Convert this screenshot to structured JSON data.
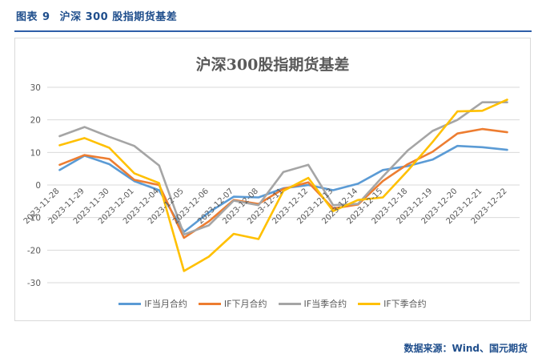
{
  "figure": {
    "label": "图表",
    "number": "9",
    "title": "沪深 300 股指期货基差"
  },
  "source": "数据来源：Wind、国元期货",
  "chart_data": {
    "type": "line",
    "title": "沪深300股指期货基差",
    "xlabel": "",
    "ylabel": "",
    "ylim": [
      -30,
      30
    ],
    "yticks": [
      -30,
      -20,
      -10,
      0,
      10,
      20,
      30
    ],
    "grid": true,
    "legend_position": "bottom",
    "x": [
      "2023-11-28",
      "2023-11-29",
      "2023-11-30",
      "2023-12-01",
      "2023-12-04",
      "2023-12-05",
      "2023-12-06",
      "2023-12-07",
      "2023-12-08",
      "2023-12-11",
      "2023-12-12",
      "2023-12-13",
      "2023-12-14",
      "2023-12-15",
      "2023-12-18",
      "2023-12-19",
      "2023-12-20",
      "2023-12-21",
      "2023-12-22"
    ],
    "series": [
      {
        "name": "IF当月合约",
        "color": "#5b9bd5",
        "values": [
          4.6,
          9.0,
          6.4,
          1.2,
          -1.6,
          -14.4,
          -8.4,
          -3.6,
          -3.8,
          -1.0,
          0.0,
          -1.6,
          0.4,
          4.6,
          5.8,
          7.8,
          12.0,
          11.6,
          10.8
        ]
      },
      {
        "name": "IF下月合约",
        "color": "#ed7d31",
        "values": [
          6.2,
          9.2,
          8.0,
          1.6,
          0.0,
          -16.2,
          -11.2,
          -4.6,
          -5.8,
          -1.2,
          0.8,
          -7.2,
          -6.0,
          1.2,
          6.4,
          10.2,
          15.8,
          17.2,
          16.2
        ]
      },
      {
        "name": "IF当季合约",
        "color": "#a5a5a5",
        "values": [
          15.0,
          17.8,
          14.8,
          12.0,
          6.0,
          -15.2,
          -12.4,
          -4.8,
          -6.2,
          4.0,
          6.2,
          -6.2,
          -5.8,
          2.6,
          10.6,
          16.6,
          20.0,
          25.4,
          25.4
        ]
      },
      {
        "name": "IF下季合约",
        "color": "#ffc000",
        "values": [
          12.2,
          14.4,
          11.4,
          3.6,
          0.6,
          -26.4,
          -22.0,
          -15.0,
          -16.6,
          -1.8,
          2.2,
          -8.0,
          -4.6,
          -3.8,
          4.4,
          13.2,
          22.6,
          22.8,
          26.2
        ]
      }
    ]
  }
}
